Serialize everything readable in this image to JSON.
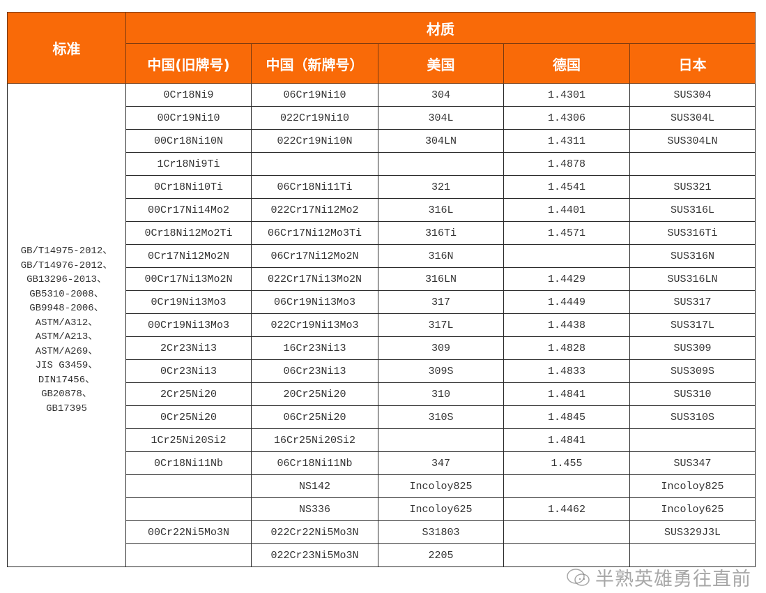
{
  "header": {
    "standard": "标准",
    "material": "材质",
    "columns": [
      "中国(旧牌号)",
      "中国（新牌号）",
      "美国",
      "德国",
      "日本"
    ]
  },
  "accent_color": "#f96a08",
  "standards": [
    "GB/T14975-2012、",
    "GB/T14976-2012、",
    "GB13296-2013、",
    "GB5310-2008、",
    "GB9948-2006、",
    "ASTM/A312、",
    "ASTM/A213、",
    "ASTM/A269、",
    "JIS G3459、",
    "DIN17456、",
    "GB20878、",
    "GB17395"
  ],
  "rows": [
    [
      "0Cr18Ni9",
      "06Cr19Ni10",
      "304",
      "1.4301",
      "SUS304"
    ],
    [
      "00Cr19Ni10",
      "022Cr19Ni10",
      "304L",
      "1.4306",
      "SUS304L"
    ],
    [
      "00Cr18Ni10N",
      "022Cr19Ni10N",
      "304LN",
      "1.4311",
      "SUS304LN"
    ],
    [
      "1Cr18Ni9Ti",
      "",
      "",
      "1.4878",
      ""
    ],
    [
      "0Cr18Ni10Ti",
      "06Cr18Ni11Ti",
      "321",
      "1.4541",
      "SUS321"
    ],
    [
      "00Cr17Ni14Mo2",
      "022Cr17Ni12Mo2",
      "316L",
      "1.4401",
      "SUS316L"
    ],
    [
      "0Cr18Ni12Mo2Ti",
      "06Cr17Ni12Mo3Ti",
      "316Ti",
      "1.4571",
      "SUS316Ti"
    ],
    [
      "0Cr17Ni12Mo2N",
      "06Cr17Ni12Mo2N",
      "316N",
      "",
      "SUS316N"
    ],
    [
      "00Cr17Ni13Mo2N",
      "022Cr17Ni13Mo2N",
      "316LN",
      "1.4429",
      "SUS316LN"
    ],
    [
      "0Cr19Ni13Mo3",
      "06Cr19Ni13Mo3",
      "317",
      "1.4449",
      "SUS317"
    ],
    [
      "00Cr19Ni13Mo3",
      "022Cr19Ni13Mo3",
      "317L",
      "1.4438",
      "SUS317L"
    ],
    [
      "2Cr23Ni13",
      "16Cr23Ni13",
      "309",
      "1.4828",
      "SUS309"
    ],
    [
      "0Cr23Ni13",
      "06Cr23Ni13",
      "309S",
      "1.4833",
      "SUS309S"
    ],
    [
      "2Cr25Ni20",
      "20Cr25Ni20",
      "310",
      "1.4841",
      "SUS310"
    ],
    [
      "0Cr25Ni20",
      "06Cr25Ni20",
      "310S",
      "1.4845",
      "SUS310S"
    ],
    [
      "1Cr25Ni20Si2",
      "16Cr25Ni20Si2",
      "",
      "1.4841",
      ""
    ],
    [
      "0Cr18Ni11Nb",
      "06Cr18Ni11Nb",
      "347",
      "1.455",
      "SUS347"
    ],
    [
      "",
      "NS142",
      "Incoloy825",
      "",
      "Incoloy825"
    ],
    [
      "",
      "NS336",
      "Incoloy625",
      "1.4462",
      "Incoloy625"
    ],
    [
      "00Cr22Ni5Mo3N",
      "022Cr22Ni5Mo3N",
      "S31803",
      "",
      "SUS329J3L"
    ],
    [
      "",
      "022Cr23Ni5Mo3N",
      "2205",
      "",
      ""
    ]
  ],
  "watermark": {
    "text": "半熟英雄勇往直前",
    "icon": "wechat-icon"
  }
}
